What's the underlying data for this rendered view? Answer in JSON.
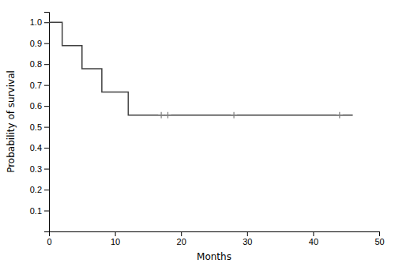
{
  "chart_data": {
    "type": "step",
    "xlabel": "Months",
    "ylabel": "Probability of survival",
    "xlim": [
      0,
      50
    ],
    "ylim": [
      0.0,
      1.05
    ],
    "xticks": [
      0,
      10,
      20,
      30,
      40,
      50
    ],
    "yticks": [
      0.1,
      0.2,
      0.3,
      0.4,
      0.5,
      0.6,
      0.7,
      0.8,
      0.9,
      {
        "value": 1.0,
        "label": "1.0"
      }
    ],
    "series": [
      {
        "type": "step",
        "color": "#404040",
        "x": [
          0,
          2,
          2,
          5,
          5,
          8,
          8,
          12,
          12,
          13,
          13,
          15,
          15,
          46
        ],
        "values": [
          1.0,
          1.0,
          0.889,
          0.889,
          0.778,
          0.778,
          0.667,
          0.667,
          0.556,
          0.556,
          0.556,
          0.556,
          0.556,
          0.556
        ]
      },
      {
        "type": "scatter",
        "marker": "plus",
        "color": "#808080",
        "x": [
          17,
          18,
          28,
          44
        ],
        "values": [
          0.556,
          0.556,
          0.556,
          0.556
        ]
      }
    ]
  }
}
